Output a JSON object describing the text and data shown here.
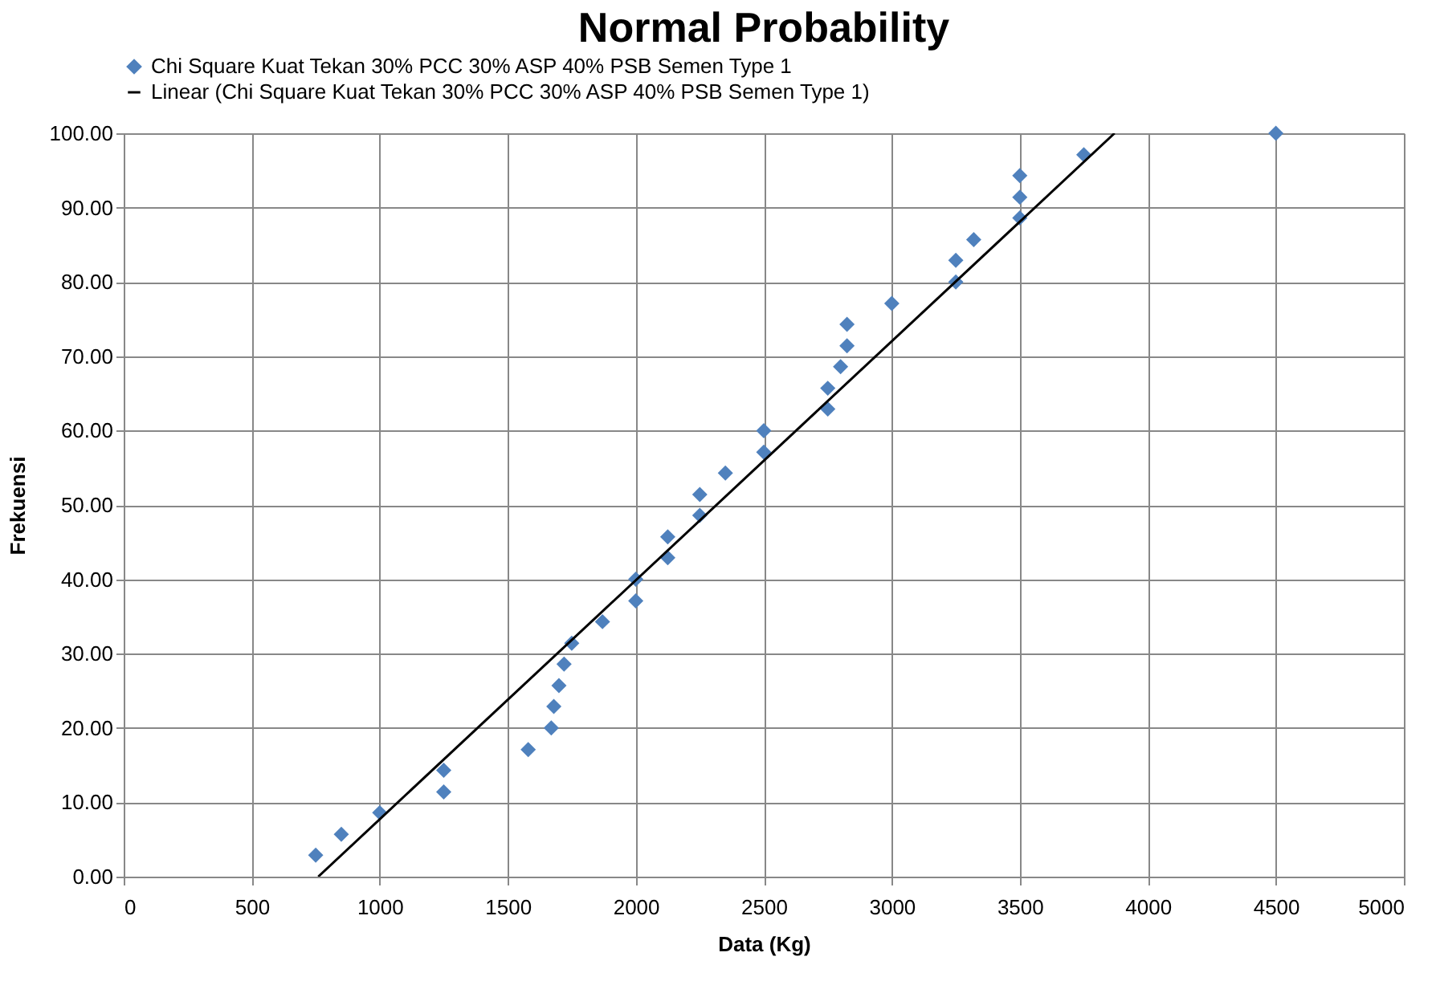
{
  "chart_data": {
    "type": "scatter",
    "title": "Normal Probability",
    "xlabel": "Data (Kg)",
    "ylabel": "Frekuensi",
    "xlim": [
      0,
      5000
    ],
    "xticks": [
      0,
      500,
      1000,
      1500,
      2000,
      2500,
      3000,
      3500,
      4000,
      4500,
      5000
    ],
    "ylim": [
      0,
      100
    ],
    "yticks": [
      {
        "value": 0,
        "label": "0.00"
      },
      {
        "value": 10,
        "label": "10.00"
      },
      {
        "value": 20,
        "label": "20.00"
      },
      {
        "value": 30,
        "label": "30.00"
      },
      {
        "value": 40,
        "label": "40.00"
      },
      {
        "value": 50,
        "label": "50.00"
      },
      {
        "value": 60,
        "label": "60.00"
      },
      {
        "value": 70,
        "label": "70.00"
      },
      {
        "value": 80,
        "label": "80.00"
      },
      {
        "value": 90,
        "label": "90.00"
      },
      {
        "value": 100,
        "label": "100.00"
      }
    ],
    "grid": true,
    "legend": "top",
    "series": [
      {
        "name": "Chi Square Kuat Tekan 30% PCC 30% ASP 40% PSB Semen Type 1",
        "marker": "diamond",
        "color": "#4f81bd",
        "x": [
          750,
          850,
          1000,
          1250,
          1250,
          1580,
          1670,
          1680,
          1700,
          1720,
          1750,
          1870,
          2000,
          2000,
          2125,
          2125,
          2250,
          2250,
          2350,
          2500,
          2500,
          2750,
          2750,
          2800,
          2825,
          2825,
          3000,
          3250,
          3250,
          3320,
          3500,
          3500,
          3500,
          3750,
          4500
        ],
        "values": [
          2.9,
          5.7,
          8.6,
          11.4,
          14.3,
          17.1,
          20.0,
          22.9,
          25.7,
          28.6,
          31.4,
          34.3,
          37.1,
          40.0,
          42.9,
          45.7,
          48.6,
          51.4,
          54.3,
          57.1,
          60.0,
          62.9,
          65.7,
          68.6,
          71.4,
          74.3,
          77.1,
          80.0,
          82.9,
          85.7,
          88.6,
          91.4,
          94.3,
          97.1,
          100.0
        ]
      },
      {
        "name": "Linear (Chi Square Kuat Tekan 30% PCC 30% ASP 40% PSB Semen Type 1)",
        "type": "line",
        "line_style": "solid",
        "color": "#000000",
        "x": [
          760,
          3870
        ],
        "values": [
          0,
          100
        ]
      }
    ]
  }
}
